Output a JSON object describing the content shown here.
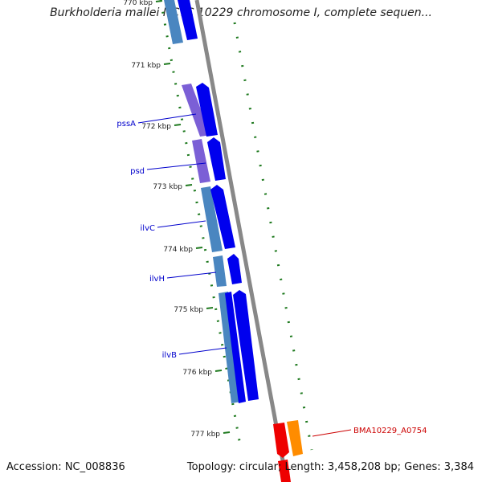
{
  "title": "Burkholderia mallei NCTC 10229 chromosome I, complete sequen...",
  "footer": {
    "accession": "Accession: NC_008836",
    "topology": "Topology: circular; Length: 3,458,208 bp; Genes: 3,384"
  },
  "colors": {
    "backbone": "#888888",
    "cds_forward": "#0000ee",
    "gene_forward_purple": "#7b5fd6",
    "gene_forward_steelblue": "#4a86c0",
    "gene_reverse": "#ee0000",
    "gene_reverse_orange": "#ff8c00",
    "tick_green": "#1f7a1f",
    "label_blue": "#0000cc",
    "label_red": "#cc0000"
  },
  "ticks": [
    {
      "label": "770 kbp"
    },
    {
      "label": "771 kbp"
    },
    {
      "label": "772 kbp"
    },
    {
      "label": "773 kbp"
    },
    {
      "label": "774 kbp"
    },
    {
      "label": "775 kbp"
    },
    {
      "label": "776 kbp"
    },
    {
      "label": "777 kbp"
    }
  ],
  "genes": [
    {
      "name": "pssA",
      "strand": "forward"
    },
    {
      "name": "psd",
      "strand": "forward"
    },
    {
      "name": "ilvC",
      "strand": "forward"
    },
    {
      "name": "ilvH",
      "strand": "forward"
    },
    {
      "name": "ilvB",
      "strand": "forward"
    },
    {
      "name": "BMA10229_A0754",
      "strand": "reverse"
    }
  ]
}
